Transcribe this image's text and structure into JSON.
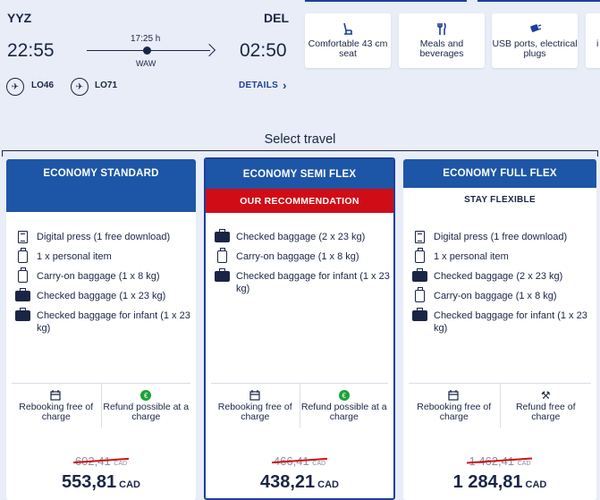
{
  "flight": {
    "origin": "YYZ",
    "destination": "DEL",
    "depart_time": "22:55",
    "arrive_time": "02:50",
    "duration": "17:25 h",
    "stopover": "WAW",
    "segments": [
      "LO46",
      "LO71"
    ],
    "details_label": "DETAILS",
    "details_chevron": "›",
    "airline_logo_char": "✈"
  },
  "amenities": [
    {
      "icon": "seat-icon",
      "glyph": "💺",
      "label": "Comfortable 43 cm seat"
    },
    {
      "icon": "meals-icon",
      "glyph": "🍴",
      "label": "Meals and beverages"
    },
    {
      "icon": "usb-icon",
      "glyph": "🔌",
      "label": "USB ports, electrical plugs"
    },
    {
      "icon": "info-icon",
      "glyph": "",
      "label": "i"
    }
  ],
  "select_title": "Select travel",
  "colors": {
    "brand_blue": "#1d56a6",
    "recommend_red": "#d00d17",
    "refund_green": "#19a337"
  },
  "fares": [
    {
      "name": "ECONOMY STANDARD",
      "subtitle": "",
      "features": [
        {
          "icon": "digital-press-icon",
          "text": "Digital press (1 free download)"
        },
        {
          "icon": "personal-item-icon",
          "text": "1 x personal item"
        },
        {
          "icon": "carry-on-icon",
          "text": "Carry-on baggage  (1 x 8 kg)"
        },
        {
          "icon": "checked-baggage-icon",
          "text": "Checked baggage (1 x 23 kg)"
        },
        {
          "icon": "infant-baggage-icon",
          "text": "Checked baggage for infant (1 x 23 kg)"
        }
      ],
      "rebooking": "Rebooking free of charge",
      "refund": "Refund possible at a charge",
      "refund_glyph": "€",
      "old_price": "602,41",
      "price": "553,81",
      "currency": "CAD"
    },
    {
      "name": "ECONOMY SEMI FLEX",
      "subtitle": "OUR RECOMMENDATION",
      "features": [
        {
          "icon": "checked-baggage-icon",
          "text": "Checked baggage (2 x 23 kg)"
        },
        {
          "icon": "carry-on-icon",
          "text": "Carry-on baggage  (1 x 8 kg)"
        },
        {
          "icon": "infant-baggage-icon",
          "text": "Checked baggage for infant (1 x 23 kg)"
        }
      ],
      "rebooking": "Rebooking free of charge",
      "refund": "Refund possible at a charge",
      "refund_glyph": "€",
      "old_price": "466,41",
      "price": "438,21",
      "currency": "CAD"
    },
    {
      "name": "ECONOMY FULL FLEX",
      "subtitle": "STAY FLEXIBLE",
      "features": [
        {
          "icon": "digital-press-icon",
          "text": "Digital press (1 free download)"
        },
        {
          "icon": "personal-item-icon",
          "text": "1 x personal item"
        },
        {
          "icon": "checked-baggage-icon",
          "text": "Checked baggage (2 x 23 kg)"
        },
        {
          "icon": "carry-on-icon",
          "text": "Carry-on baggage  (1 x 8 kg)"
        },
        {
          "icon": "infant-baggage-icon",
          "text": "Checked baggage for infant (1 x 23 kg)"
        }
      ],
      "rebooking": "Rebooking free of charge",
      "refund": "Refund free of charge",
      "refund_glyph": "⚒",
      "old_price": "1 462,41",
      "price": "1 284,81",
      "currency": "CAD"
    }
  ]
}
